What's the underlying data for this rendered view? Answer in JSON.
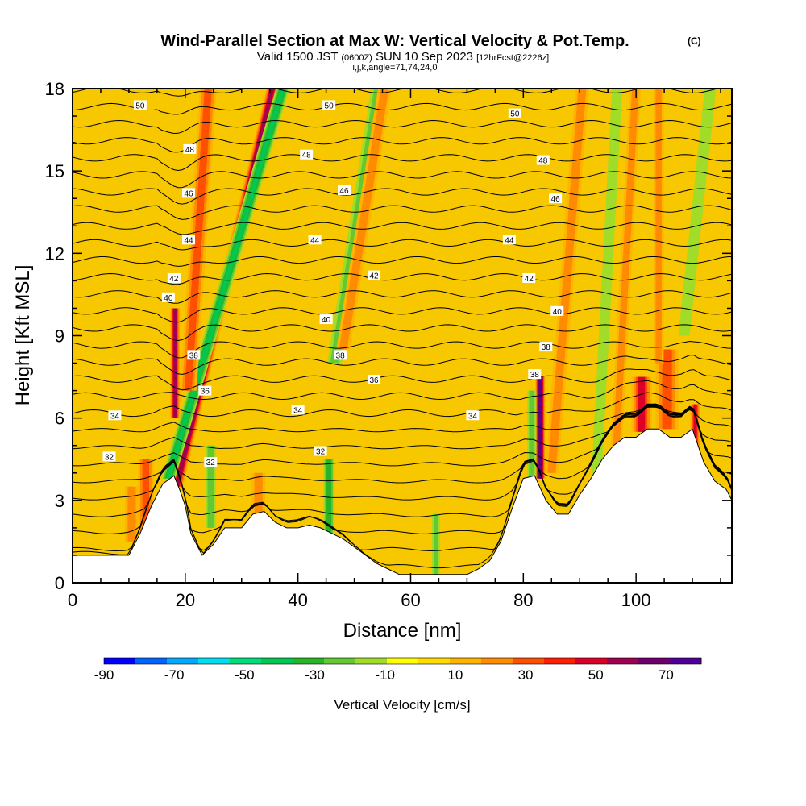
{
  "titles": {
    "main": "Wind-Parallel Section at Max W: Vertical Velocity & Pot.Temp.",
    "copyright": "(C)",
    "valid_prefix": "Valid 1500 JST",
    "valid_utc": "(0600Z)",
    "valid_date": "SUN 10 Sep 2023",
    "forecast": "[12hrFcst@2226z]",
    "ijk": "i,j,k,angle=71,74,24,0"
  },
  "colors": {
    "background": "#f7c700",
    "terrain": "#ffffff",
    "contour": "#000000"
  },
  "chart_data": {
    "type": "heatmap",
    "title": "Wind-Parallel Section at Max W: Vertical Velocity & Pot.Temp.",
    "xlabel": "Distance [nm]",
    "ylabel": "Height [Kft MSL]",
    "xlim": [
      0,
      117
    ],
    "ylim": [
      0,
      18
    ],
    "x_ticks": [
      0,
      20,
      40,
      60,
      80,
      100
    ],
    "y_ticks": [
      0,
      3,
      6,
      9,
      12,
      15,
      18
    ],
    "colorbar": {
      "label": "Vertical Velocity [cm/s]",
      "ticks": [
        -90,
        -70,
        -50,
        -30,
        -10,
        10,
        30,
        50,
        70
      ],
      "range": [
        -90,
        80
      ],
      "colors": [
        "#0000ff",
        "#0064ff",
        "#00aaff",
        "#00dcf0",
        "#00dc78",
        "#00c850",
        "#28b428",
        "#64c832",
        "#a0dc28",
        "#ffff00",
        "#ffdc00",
        "#ffb400",
        "#ff8c00",
        "#ff5000",
        "#ff1e00",
        "#dc0028",
        "#a00050",
        "#6e006e",
        "#500096"
      ]
    },
    "terrain": {
      "x": [
        0,
        0,
        10,
        12,
        14,
        16,
        18,
        19,
        20,
        21,
        23,
        25,
        27,
        30,
        32,
        34,
        36,
        38,
        40,
        42,
        44,
        46,
        48,
        50,
        52,
        54,
        56,
        58,
        60,
        62,
        64,
        66,
        68,
        70,
        72,
        74,
        76,
        78,
        80,
        82,
        84,
        86,
        88,
        90,
        92,
        94,
        96,
        98,
        100,
        102,
        104,
        106,
        108,
        110,
        112,
        114,
        116,
        117,
        117
      ],
      "y": [
        0,
        1.0,
        1.0,
        1.8,
        2.8,
        3.6,
        3.9,
        3.4,
        2.8,
        1.8,
        1.0,
        1.4,
        2.0,
        2.0,
        2.5,
        2.6,
        2.2,
        2.0,
        2.0,
        2.1,
        2.0,
        1.8,
        1.6,
        1.3,
        1.0,
        0.7,
        0.5,
        0.3,
        0.3,
        0.3,
        0.3,
        0.3,
        0.3,
        0.3,
        0.5,
        0.8,
        1.5,
        2.7,
        3.8,
        3.9,
        3.0,
        2.5,
        2.5,
        3.2,
        3.8,
        4.5,
        5.0,
        5.3,
        5.3,
        5.6,
        5.6,
        5.3,
        5.3,
        5.6,
        4.4,
        3.7,
        3.4,
        3.0,
        0
      ]
    },
    "features": [
      {
        "x": 18.5,
        "y0": 3.5,
        "y1": 18,
        "tilt": 0.18,
        "w": 1.1,
        "value": 55
      },
      {
        "x": 17.0,
        "y0": 3.8,
        "y1": 18,
        "tilt": 0.22,
        "w": 1.2,
        "value": -45
      },
      {
        "x": 20.5,
        "y0": 7.0,
        "y1": 18,
        "tilt": 0.05,
        "w": 1.5,
        "value": 35
      },
      {
        "x": 18.2,
        "y0": 6.0,
        "y1": 10,
        "tilt": 0.0,
        "w": 0.9,
        "value": 60
      },
      {
        "x": 24.5,
        "y0": 2.0,
        "y1": 5.0,
        "tilt": 0.0,
        "w": 0.9,
        "value": -25
      },
      {
        "x": 13.0,
        "y0": 1.5,
        "y1": 4.5,
        "tilt": 0.0,
        "w": 1.4,
        "value": 35
      },
      {
        "x": 10.5,
        "y0": 1.5,
        "y1": 3.5,
        "tilt": 0.0,
        "w": 1.2,
        "value": 25
      },
      {
        "x": 46.5,
        "y0": 8.0,
        "y1": 18,
        "tilt": 0.12,
        "w": 1.3,
        "value": -25
      },
      {
        "x": 48.0,
        "y0": 8.5,
        "y1": 18,
        "tilt": 0.12,
        "w": 1.2,
        "value": 30
      },
      {
        "x": 45.5,
        "y0": 1.5,
        "y1": 4.5,
        "tilt": 0.0,
        "w": 1.0,
        "value": -35
      },
      {
        "x": 33.0,
        "y0": 1.5,
        "y1": 4.0,
        "tilt": 0.0,
        "w": 1.2,
        "value": 28
      },
      {
        "x": 64.5,
        "y0": 0.3,
        "y1": 2.5,
        "tilt": 0.0,
        "w": 0.7,
        "value": -30
      },
      {
        "x": 83.0,
        "y0": 3.8,
        "y1": 7.5,
        "tilt": 0.0,
        "w": 0.9,
        "value": 75
      },
      {
        "x": 81.5,
        "y0": 3.8,
        "y1": 7.0,
        "tilt": 0.0,
        "w": 0.8,
        "value": -25
      },
      {
        "x": 85.0,
        "y0": 4.0,
        "y1": 18,
        "tilt": 0.06,
        "w": 1.2,
        "value": 30
      },
      {
        "x": 101.0,
        "y0": 5.5,
        "y1": 7.5,
        "tilt": 0.0,
        "w": 1.8,
        "value": 45
      },
      {
        "x": 105.5,
        "y0": 5.6,
        "y1": 8.5,
        "tilt": 0.0,
        "w": 2.0,
        "value": 42
      },
      {
        "x": 110.5,
        "y0": 4.5,
        "y1": 6.5,
        "tilt": 0.0,
        "w": 0.9,
        "value": 45
      },
      {
        "x": 93.0,
        "y0": 4.0,
        "y1": 18,
        "tilt": 0.04,
        "w": 0.9,
        "value": -15
      },
      {
        "x": 96.5,
        "y0": 5.0,
        "y1": 18,
        "tilt": 0.04,
        "w": 1.0,
        "value": 30
      },
      {
        "x": 108.5,
        "y0": 9.0,
        "y1": 18,
        "tilt": 0.08,
        "w": 1.0,
        "value": -18
      },
      {
        "x": 104.0,
        "y0": 8.0,
        "y1": 18,
        "tilt": 0.0,
        "w": 0.9,
        "value": 28
      }
    ],
    "contour_labels": [
      {
        "x": 12,
        "y": 17.4,
        "text": "50"
      },
      {
        "x": 45.5,
        "y": 17.4,
        "text": "50"
      },
      {
        "x": 78.5,
        "y": 17.1,
        "text": "50"
      },
      {
        "x": 20.8,
        "y": 15.8,
        "text": "48"
      },
      {
        "x": 41.5,
        "y": 15.6,
        "text": "48"
      },
      {
        "x": 83.5,
        "y": 15.4,
        "text": "48"
      },
      {
        "x": 20.6,
        "y": 14.2,
        "text": "46"
      },
      {
        "x": 48.2,
        "y": 14.3,
        "text": "46"
      },
      {
        "x": 85.7,
        "y": 14.0,
        "text": "46"
      },
      {
        "x": 20.6,
        "y": 12.5,
        "text": "44"
      },
      {
        "x": 43.0,
        "y": 12.5,
        "text": "44"
      },
      {
        "x": 77.5,
        "y": 12.5,
        "text": "44"
      },
      {
        "x": 18.0,
        "y": 11.1,
        "text": "42"
      },
      {
        "x": 53.5,
        "y": 11.2,
        "text": "42"
      },
      {
        "x": 81.0,
        "y": 11.1,
        "text": "42"
      },
      {
        "x": 17.0,
        "y": 10.4,
        "text": "40"
      },
      {
        "x": 45.0,
        "y": 9.6,
        "text": "40"
      },
      {
        "x": 86.0,
        "y": 9.9,
        "text": "40"
      },
      {
        "x": 21.5,
        "y": 8.3,
        "text": "38"
      },
      {
        "x": 47.5,
        "y": 8.3,
        "text": "38"
      },
      {
        "x": 84.0,
        "y": 8.6,
        "text": "38"
      },
      {
        "x": 82.0,
        "y": 7.6,
        "text": "38"
      },
      {
        "x": 23.5,
        "y": 7.0,
        "text": "36"
      },
      {
        "x": 53.5,
        "y": 7.4,
        "text": "36"
      },
      {
        "x": 7.5,
        "y": 6.1,
        "text": "34"
      },
      {
        "x": 40.0,
        "y": 6.3,
        "text": "34"
      },
      {
        "x": 71.0,
        "y": 6.1,
        "text": "34"
      },
      {
        "x": 6.5,
        "y": 4.6,
        "text": "32"
      },
      {
        "x": 44.0,
        "y": 4.8,
        "text": "32"
      },
      {
        "x": 24.5,
        "y": 4.4,
        "text": "32"
      }
    ]
  }
}
